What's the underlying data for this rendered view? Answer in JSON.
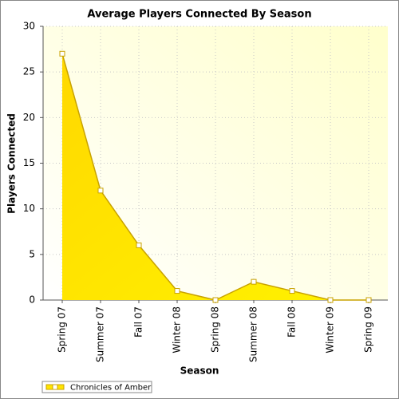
{
  "chart_data": {
    "type": "area",
    "title": "Average Players Connected By Season",
    "x_label": "Season",
    "y_label": "Players Connected",
    "categories": [
      "Spring 07",
      "Summer 07",
      "Fall 07",
      "Winter 08",
      "Spring 08",
      "Summer 08",
      "Fall 08",
      "Winter 09",
      "Spring 09"
    ],
    "series": [
      {
        "name": "Chronicles of Amber",
        "color": "#ffe400",
        "values": [
          27,
          12,
          6,
          1,
          0,
          2,
          1,
          0,
          0
        ]
      }
    ],
    "ylim": [
      0,
      30
    ],
    "yticks": [
      0,
      5,
      10,
      15,
      20,
      25,
      30
    ],
    "grid": true,
    "legend": "bottom-left"
  }
}
